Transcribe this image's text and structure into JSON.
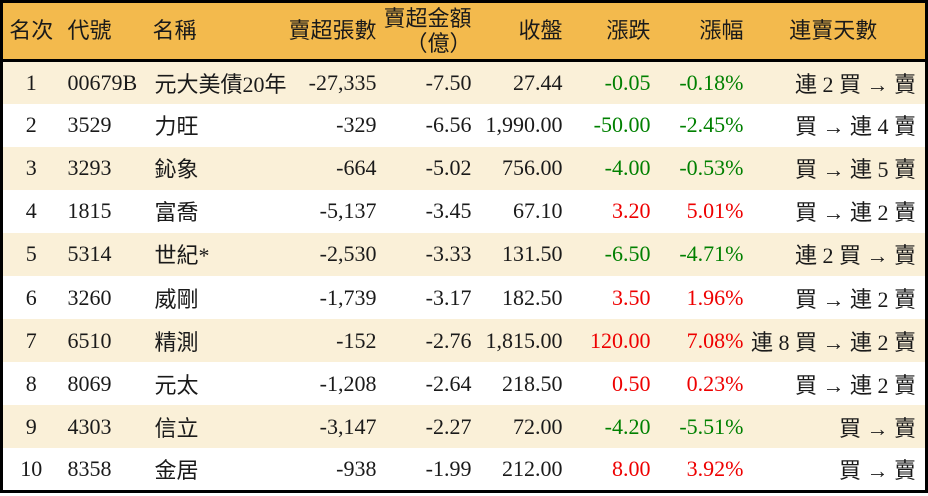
{
  "table": {
    "colors": {
      "header_bg": "#F3BA4D",
      "row_alt_bg": "#FAF0D8",
      "row_bg": "#FFFFFF",
      "up_color": "#EE0000",
      "down_color": "#008000",
      "border_color": "#000000"
    },
    "columns": [
      {
        "key": "rank",
        "label": "名次",
        "align": "center"
      },
      {
        "key": "code",
        "label": "代號",
        "align": "left"
      },
      {
        "key": "name",
        "label": "名稱",
        "align": "left"
      },
      {
        "key": "sell_lots",
        "label": "賣超張數",
        "align": "right"
      },
      {
        "key": "sell_amount",
        "label": "賣超金額",
        "label2": "（億）",
        "align": "right"
      },
      {
        "key": "close",
        "label": "收盤",
        "align": "right"
      },
      {
        "key": "change",
        "label": "漲跌",
        "align": "right"
      },
      {
        "key": "change_pct",
        "label": "漲幅",
        "align": "right"
      },
      {
        "key": "streak",
        "label": "連賣天數",
        "align": "right"
      }
    ],
    "rows": [
      {
        "rank": "1",
        "code": "00679B",
        "name": "元大美債20年",
        "sell_lots": "-27,335",
        "sell_amount": "-7.50",
        "close": "27.44",
        "change": "-0.05",
        "change_pct": "-0.18%",
        "direction": "down",
        "streak": "連 2 買 → 賣"
      },
      {
        "rank": "2",
        "code": "3529",
        "name": "力旺",
        "sell_lots": "-329",
        "sell_amount": "-6.56",
        "close": "1,990.00",
        "change": "-50.00",
        "change_pct": "-2.45%",
        "direction": "down",
        "streak": "買 → 連 4 賣"
      },
      {
        "rank": "3",
        "code": "3293",
        "name": "鈊象",
        "sell_lots": "-664",
        "sell_amount": "-5.02",
        "close": "756.00",
        "change": "-4.00",
        "change_pct": "-0.53%",
        "direction": "down",
        "streak": "買 → 連 5 賣"
      },
      {
        "rank": "4",
        "code": "1815",
        "name": "富喬",
        "sell_lots": "-5,137",
        "sell_amount": "-3.45",
        "close": "67.10",
        "change": "3.20",
        "change_pct": "5.01%",
        "direction": "up",
        "streak": "買 → 連 2 賣"
      },
      {
        "rank": "5",
        "code": "5314",
        "name": "世紀*",
        "sell_lots": "-2,530",
        "sell_amount": "-3.33",
        "close": "131.50",
        "change": "-6.50",
        "change_pct": "-4.71%",
        "direction": "down",
        "streak": "連 2 買 → 賣"
      },
      {
        "rank": "6",
        "code": "3260",
        "name": "威剛",
        "sell_lots": "-1,739",
        "sell_amount": "-3.17",
        "close": "182.50",
        "change": "3.50",
        "change_pct": "1.96%",
        "direction": "up",
        "streak": "買 → 連 2 賣"
      },
      {
        "rank": "7",
        "code": "6510",
        "name": "精測",
        "sell_lots": "-152",
        "sell_amount": "-2.76",
        "close": "1,815.00",
        "change": "120.00",
        "change_pct": "7.08%",
        "direction": "up",
        "streak": "連 8 買 → 連 2 賣"
      },
      {
        "rank": "8",
        "code": "8069",
        "name": "元太",
        "sell_lots": "-1,208",
        "sell_amount": "-2.64",
        "close": "218.50",
        "change": "0.50",
        "change_pct": "0.23%",
        "direction": "up",
        "streak": "買 → 連 2 賣"
      },
      {
        "rank": "9",
        "code": "4303",
        "name": "信立",
        "sell_lots": "-3,147",
        "sell_amount": "-2.27",
        "close": "72.00",
        "change": "-4.20",
        "change_pct": "-5.51%",
        "direction": "down",
        "streak": "買 → 賣"
      },
      {
        "rank": "10",
        "code": "8358",
        "name": "金居",
        "sell_lots": "-938",
        "sell_amount": "-1.99",
        "close": "212.00",
        "change": "8.00",
        "change_pct": "3.92%",
        "direction": "up",
        "streak": "買 → 賣"
      }
    ]
  }
}
